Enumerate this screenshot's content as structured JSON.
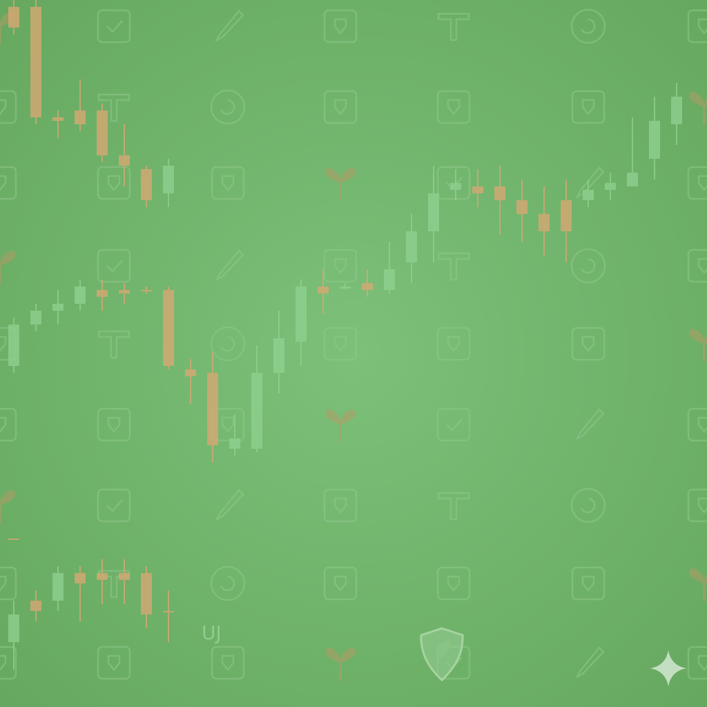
{
  "colors": {
    "background_center": "#7cc07a",
    "background_edge": "#66a85f",
    "up_candle": "#8fd08f",
    "down_candle": "#d7a874",
    "heart": "#b89a66",
    "outline_icon": "#8fc88a",
    "sparkle": "#d4e8d2",
    "shield_outline": "#a6d3a0",
    "shield_fill": "#96cc92",
    "accent_red": "#e08f80"
  },
  "icons": {
    "pattern_icons": [
      "heart-icon",
      "checkbox-icon",
      "pencil-icon",
      "puzzle-icon",
      "text-t-icon",
      "refresh-circle-icon",
      "chess-piece-icon",
      "plant-icon",
      "crown-icon"
    ],
    "foreground_icons": [
      "shield-leaf-icon",
      "sparkle-icon"
    ]
  },
  "text": {
    "small_mark": "UJ"
  }
}
